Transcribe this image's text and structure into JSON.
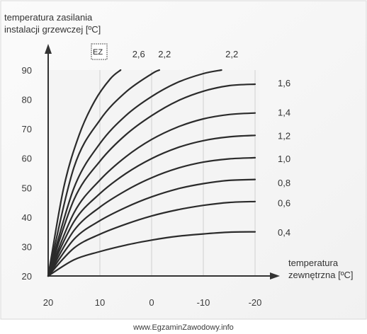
{
  "chart_data": {
    "type": "line",
    "ylabel_lines": [
      "temperatura zasilania",
      "instalacji grzewczej [ºC]"
    ],
    "xlabel_lines": [
      "temperatura",
      "zewnętrzna [ºC]"
    ],
    "x_ticks": [
      20,
      10,
      0,
      -10,
      -20
    ],
    "y_ticks": [
      20,
      30,
      40,
      50,
      60,
      70,
      80,
      90
    ],
    "xlim": [
      20,
      -20
    ],
    "ylim": [
      20,
      90
    ],
    "grid": "vertical",
    "series": [
      {
        "name": "0,4",
        "x": [
          20,
          15,
          10,
          5,
          0,
          -5,
          -10,
          -15,
          -20
        ],
        "y": [
          20,
          25.5,
          28.3,
          30.5,
          32.2,
          33.5,
          34.3,
          34.9,
          35.0
        ]
      },
      {
        "name": "0,6",
        "x": [
          20,
          15,
          10,
          5,
          0,
          -5,
          -10,
          -15,
          -20
        ],
        "y": [
          20,
          29.5,
          34.2,
          37.6,
          40.4,
          42.5,
          44.0,
          45.0,
          45.3
        ]
      },
      {
        "name": "0,8",
        "x": [
          20,
          15,
          10,
          5,
          0,
          -5,
          -10,
          -15,
          -20
        ],
        "y": [
          20,
          32.5,
          38.8,
          43.3,
          46.9,
          49.6,
          51.4,
          52.5,
          52.8
        ]
      },
      {
        "name": "1,0",
        "x": [
          20,
          15,
          10,
          5,
          0,
          -5,
          -10,
          -15,
          -20
        ],
        "y": [
          20,
          35.5,
          43.4,
          49.0,
          53.4,
          56.6,
          58.7,
          59.8,
          60.2
        ]
      },
      {
        "name": "1,2",
        "x": [
          20,
          15,
          10,
          5,
          0,
          -5,
          -10,
          -15,
          -20
        ],
        "y": [
          20,
          38.5,
          48.0,
          54.8,
          59.9,
          63.6,
          66.0,
          67.3,
          67.8
        ]
      },
      {
        "name": "1,4",
        "x": [
          20,
          15,
          10,
          5,
          0,
          -5,
          -10,
          -15,
          -20
        ],
        "y": [
          20,
          41.5,
          52.6,
          60.5,
          66.4,
          70.6,
          73.4,
          74.9,
          75.4
        ]
      },
      {
        "name": "1,6",
        "x": [
          20,
          15,
          10,
          5,
          0,
          -5,
          -10,
          -15,
          -20
        ],
        "y": [
          20,
          46.0,
          59.0,
          68.0,
          74.5,
          79.5,
          82.8,
          84.7,
          85.2
        ]
      },
      {
        "name": "2,2",
        "x": [
          20,
          15,
          10,
          5,
          0,
          -5,
          -10,
          -13.5
        ],
        "y": [
          20,
          50.0,
          65.0,
          74.5,
          81.0,
          85.8,
          88.8,
          90.0
        ]
      },
      {
        "name": "2,2",
        "x": [
          20,
          15,
          10,
          5,
          0,
          -1.5
        ],
        "y": [
          20,
          57.0,
          73.0,
          82.5,
          88.7,
          90.0
        ]
      },
      {
        "name": "2,6",
        "x": [
          20,
          17,
          14,
          11,
          8,
          6.0
        ],
        "y": [
          20,
          50.0,
          68.0,
          79.5,
          87.0,
          90.0
        ]
      }
    ],
    "right_labels": [
      {
        "text": "1,6",
        "y": 85.7
      },
      {
        "text": "1,4",
        "y": 75.7
      },
      {
        "text": "1,2",
        "y": 67.8
      },
      {
        "text": "1,0",
        "y": 59.9
      },
      {
        "text": "0,8",
        "y": 51.8
      },
      {
        "text": "0,6",
        "y": 44.9
      },
      {
        "text": "0,4",
        "y": 34.9
      }
    ],
    "top_labels": [
      {
        "text": "2,6",
        "x": 2.5
      },
      {
        "text": "2,2",
        "x": -2.5
      },
      {
        "text": "2,2",
        "x": -15.5
      }
    ]
  },
  "watermark": "www.EgzaminZawodowy.info",
  "logo_text": "EZ"
}
